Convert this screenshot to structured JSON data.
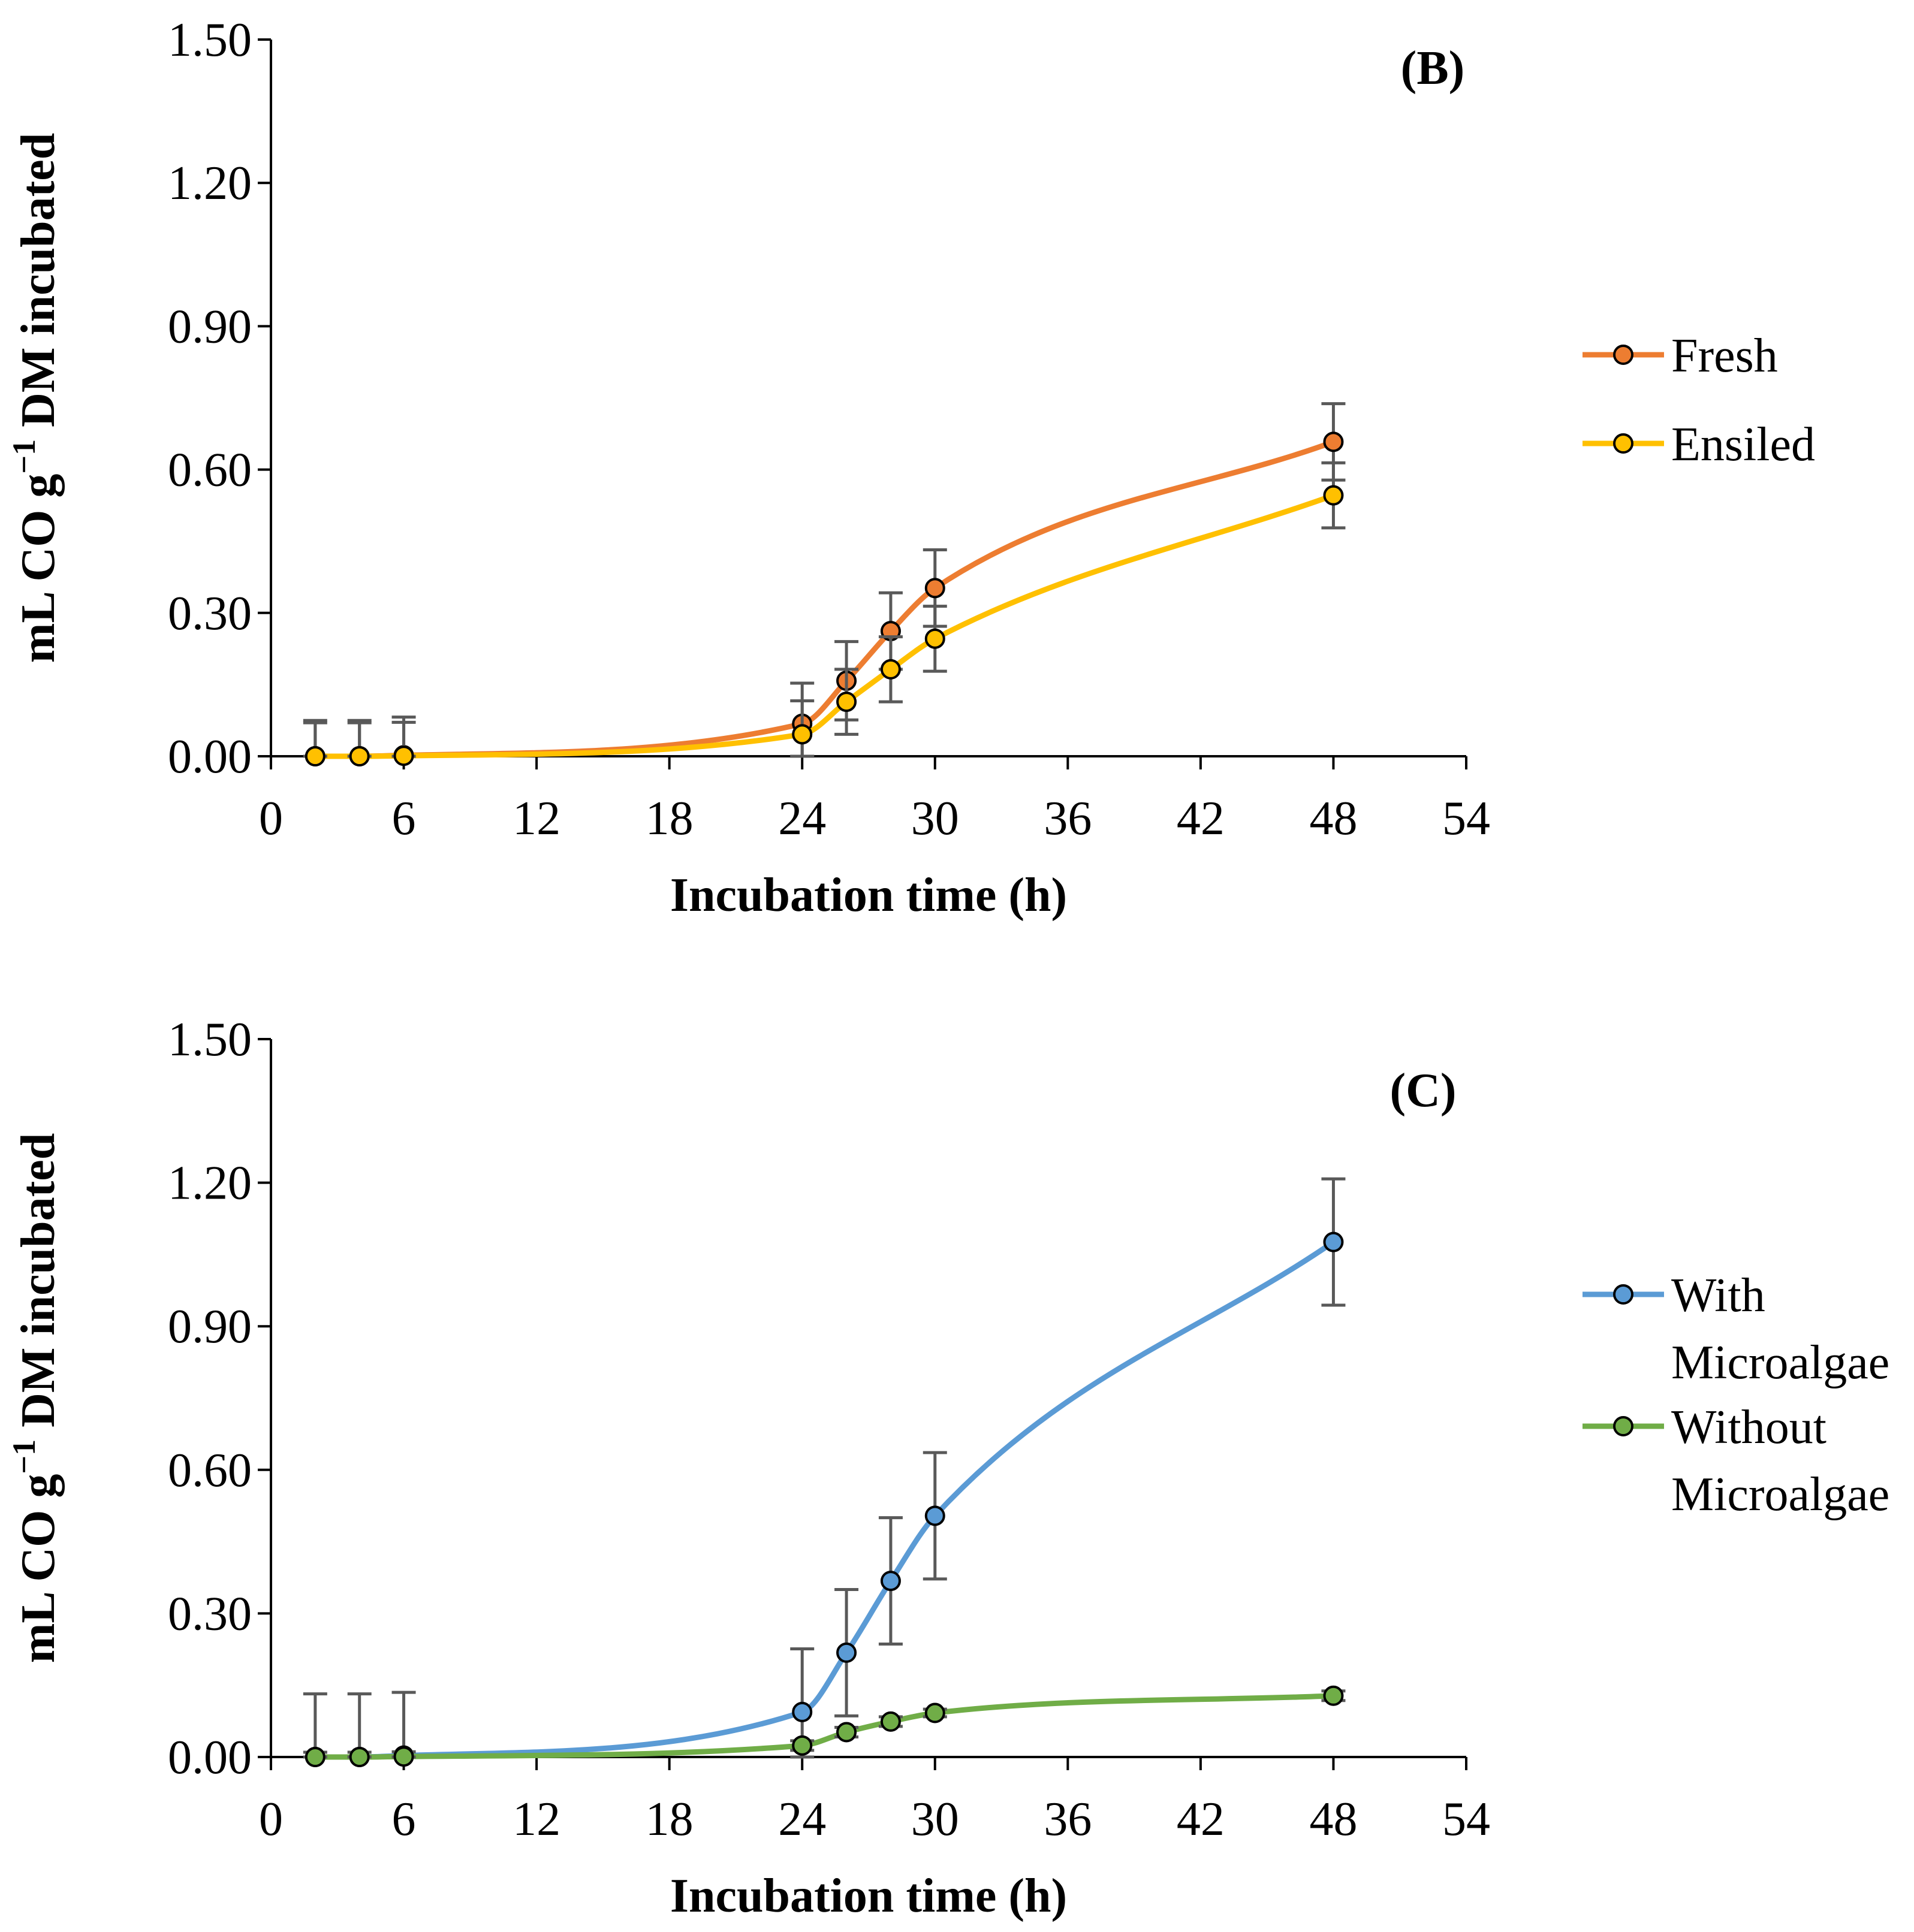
{
  "chart_data": [
    {
      "type": "line",
      "panel_label": "(B)",
      "xlabel": "Incubation time (h)",
      "ylabel_parts": [
        "mL CO g",
        "−1",
        " DM incubated"
      ],
      "x_ticks": [
        "0",
        "6",
        "12",
        "18",
        "24",
        "30",
        "36",
        "42",
        "48",
        "54"
      ],
      "y_ticks": [
        "0.00",
        "0.30",
        "0.60",
        "0.90",
        "1.20",
        "1.50"
      ],
      "xlim": [
        0,
        54
      ],
      "ylim": [
        0,
        1.5
      ],
      "x": [
        2,
        4,
        6,
        24,
        26,
        28,
        30,
        48
      ],
      "legend_position": "right",
      "series": [
        {
          "name_lines": [
            "Fresh"
          ],
          "color": "#ed7d31",
          "values": [
            0.0,
            0.0,
            0.002,
            0.068,
            0.158,
            0.262,
            0.352,
            0.658
          ],
          "errors": [
            0.075,
            0.075,
            0.08,
            0.085,
            0.082,
            0.08,
            0.08,
            0.08
          ]
        },
        {
          "name_lines": [
            "Ensiled"
          ],
          "color": "#ffc000",
          "values": [
            0.0,
            0.0,
            0.001,
            0.046,
            0.114,
            0.182,
            0.246,
            0.546
          ],
          "errors": [
            0.07,
            0.07,
            0.07,
            0.07,
            0.068,
            0.068,
            0.068,
            0.068
          ]
        }
      ]
    },
    {
      "type": "line",
      "panel_label": "(C)",
      "xlabel": "Incubation time (h)",
      "ylabel_parts": [
        "mL CO g",
        "−1",
        " DM incubated"
      ],
      "x_ticks": [
        "0",
        "6",
        "12",
        "18",
        "24",
        "30",
        "36",
        "42",
        "48",
        "54"
      ],
      "y_ticks": [
        "0.00",
        "0.30",
        "0.60",
        "0.90",
        "1.20",
        "1.50"
      ],
      "xlim": [
        0,
        54
      ],
      "ylim": [
        0,
        1.5
      ],
      "x": [
        2,
        4,
        6,
        24,
        26,
        28,
        30,
        48
      ],
      "legend_position": "right",
      "series": [
        {
          "name_lines": [
            "With",
            "Microalgae"
          ],
          "color": "#5b9bd5",
          "values": [
            0.0,
            0.0,
            0.003,
            0.094,
            0.218,
            0.368,
            0.504,
            1.076
          ],
          "errors": [
            0.132,
            0.132,
            0.132,
            0.132,
            0.132,
            0.132,
            0.132,
            0.132
          ]
        },
        {
          "name_lines": [
            "Without",
            "Microalgae"
          ],
          "color": "#70ad47",
          "values": [
            0.0,
            0.0,
            0.001,
            0.024,
            0.052,
            0.074,
            0.092,
            0.128
          ],
          "errors": [
            0.01,
            0.01,
            0.01,
            0.01,
            0.01,
            0.01,
            0.008,
            0.01
          ]
        }
      ]
    }
  ]
}
